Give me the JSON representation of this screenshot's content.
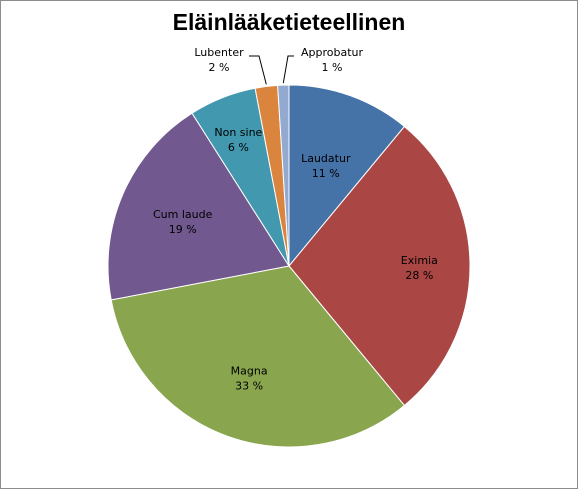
{
  "chart_data": {
    "type": "pie",
    "title": "Eläinlääketieteellinen",
    "slices": [
      {
        "label": "Laudatur",
        "percent_text": "11 %",
        "value": 11,
        "color": "#4572A7"
      },
      {
        "label": "Eximia",
        "percent_text": "28 %",
        "value": 28,
        "color": "#AA4643"
      },
      {
        "label": "Magna",
        "percent_text": "33 %",
        "value": 33,
        "color": "#89A54E"
      },
      {
        "label": "Cum laude",
        "percent_text": "19 %",
        "value": 19,
        "color": "#71588F"
      },
      {
        "label": "Non sine",
        "percent_text": "6 %",
        "value": 6,
        "color": "#4198AF"
      },
      {
        "label": "Lubenter",
        "percent_text": "2 %",
        "value": 2,
        "color": "#DB843D"
      },
      {
        "label": "Approbatur",
        "percent_text": "1 %",
        "value": 1,
        "color": "#93A9CF"
      }
    ]
  }
}
